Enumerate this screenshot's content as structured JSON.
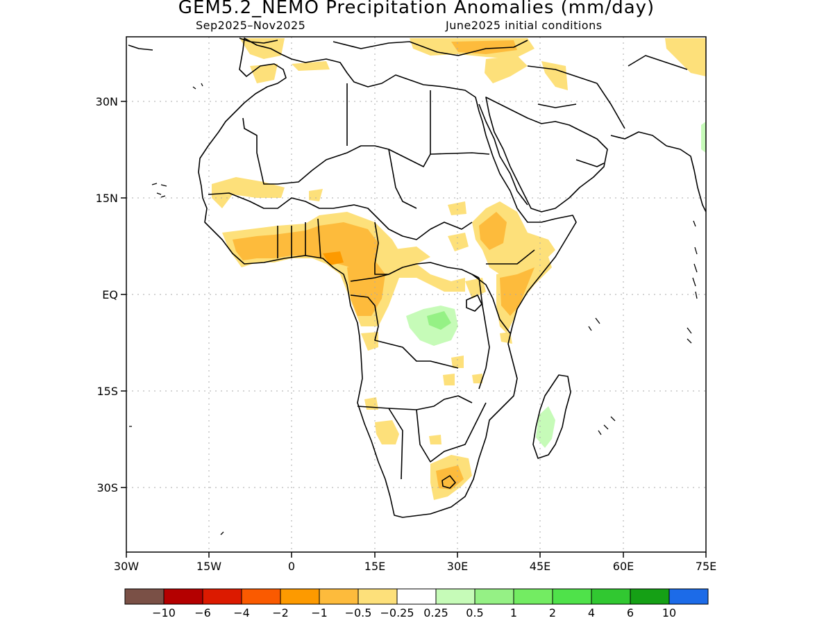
{
  "title": "GEM5.2_NEMO Precipitation Anomalies (mm/day)",
  "subtitle_left": "Sep2025–Nov2025",
  "subtitle_right": "June2025 initial conditions",
  "lat_labels": [
    "30N",
    "15N",
    "EQ",
    "15S",
    "30S"
  ],
  "lon_labels": [
    "30W",
    "15W",
    "0",
    "15E",
    "30E",
    "45E",
    "60E",
    "75E"
  ],
  "colorbar": {
    "colors": [
      "#7a5046",
      "#b40000",
      "#dc1a00",
      "#fa5a00",
      "#fd9a00",
      "#fdbb3c",
      "#fde07a",
      "#ffffff",
      "#c6fbb8",
      "#95f185",
      "#73ec62",
      "#4fe24a",
      "#31c831",
      "#15a015",
      "#1c6be8"
    ],
    "labels": [
      "-10",
      "-6",
      "-4",
      "-2",
      "-1",
      "-0.5",
      "-0.25",
      "0.25",
      "0.5",
      "1",
      "2",
      "4",
      "6",
      "10"
    ]
  },
  "anomaly_colors": {
    "light_dry": "#fde07a",
    "dry": "#fdbb3c",
    "moderate_dry": "#fd9a00",
    "light_wet": "#c6fbb8",
    "wet": "#95f185"
  }
}
